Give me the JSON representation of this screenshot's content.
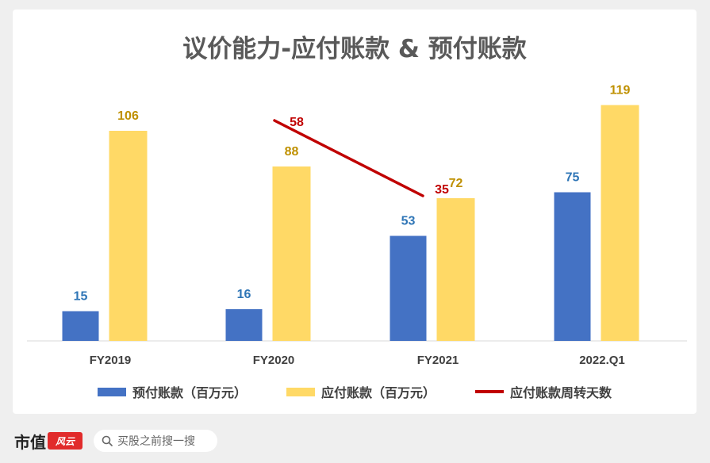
{
  "chart_data": {
    "type": "bar",
    "title": "议价能力-应付账款 & 预付账款",
    "categories": [
      "FY2019",
      "FY2020",
      "FY2021",
      "2022.Q1"
    ],
    "series": [
      {
        "name": "预付账款（百万元）",
        "type": "bar",
        "color": "#4472c4",
        "values": [
          15,
          16,
          53,
          75
        ]
      },
      {
        "name": "应付账款（百万元）",
        "type": "bar",
        "color": "#ffd966",
        "values": [
          106,
          88,
          72,
          119
        ]
      },
      {
        "name": "应付账款周转天数",
        "type": "line",
        "color": "#c00000",
        "values": [
          null,
          58,
          35,
          null
        ]
      }
    ],
    "value_label_colors": {
      "prepaid": "#2e75b6",
      "payable": "#bf9000",
      "turnover": "#c00000"
    },
    "grid": false,
    "legend_position": "bottom"
  },
  "footer": {
    "brand_text": "市值",
    "brand_mark": "风云",
    "search_placeholder": "买股之前搜一搜"
  }
}
